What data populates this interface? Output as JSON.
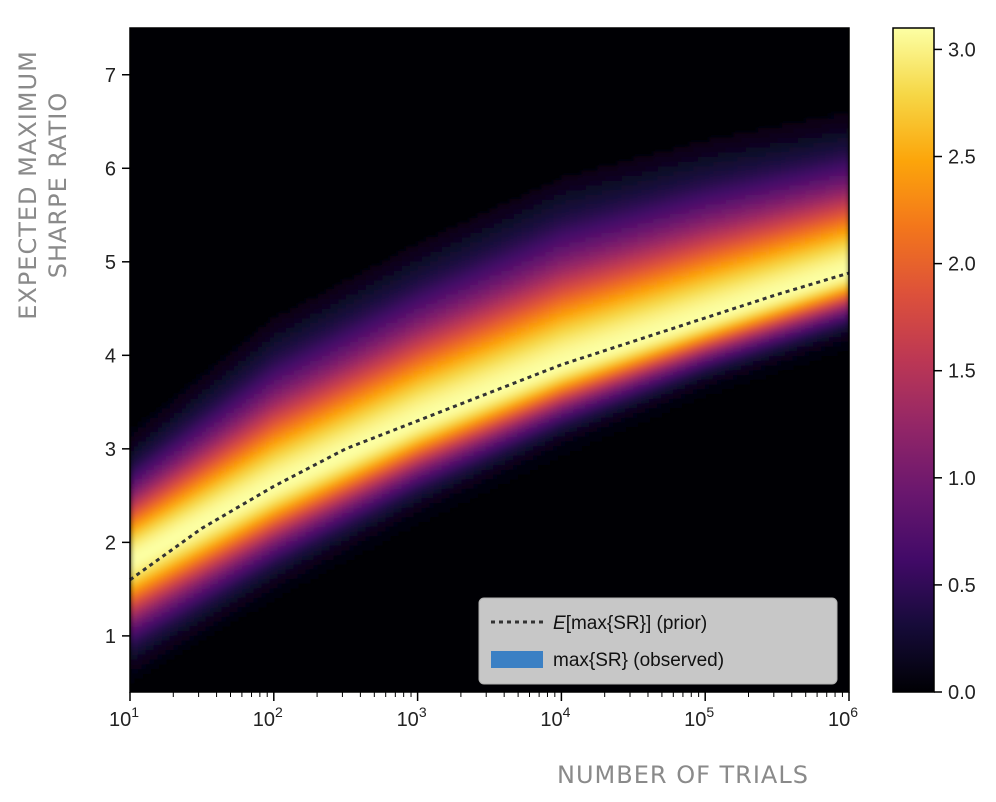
{
  "chart_data": {
    "type": "heatmap",
    "title": "",
    "xlabel": "NUMBER OF TRIALS",
    "ylabel_lines": [
      "EXPECTED MAXIMUM",
      "SHARPE RATIO"
    ],
    "x_scale": "log",
    "xlim": [
      10,
      1000000
    ],
    "ylim": [
      0.4,
      7.5
    ],
    "x_ticks": [
      {
        "value": 10,
        "base": "10",
        "exp": "1"
      },
      {
        "value": 100,
        "base": "10",
        "exp": "2"
      },
      {
        "value": 1000,
        "base": "10",
        "exp": "3"
      },
      {
        "value": 10000,
        "base": "10",
        "exp": "4"
      },
      {
        "value": 100000,
        "base": "10",
        "exp": "5"
      },
      {
        "value": 1000000,
        "base": "10",
        "exp": "6"
      }
    ],
    "y_ticks": [
      1,
      2,
      3,
      4,
      5,
      6,
      7
    ],
    "grid": false,
    "background_color": "#000004",
    "colormap": "inferno",
    "colorbar": {
      "range": [
        0.0,
        3.1
      ],
      "ticks": [
        "0.0",
        "0.5",
        "1.0",
        "1.5",
        "2.0",
        "2.5",
        "3.0"
      ],
      "tick_values": [
        0.0,
        0.5,
        1.0,
        1.5,
        2.0,
        2.5,
        3.0
      ]
    },
    "band": {
      "x": [
        10,
        100,
        1000,
        10000,
        100000,
        1000000
      ],
      "center": [
        1.8,
        2.6,
        3.3,
        3.9,
        4.4,
        4.9
      ],
      "lower_edge": [
        0.8,
        1.7,
        2.5,
        3.2,
        3.8,
        4.3
      ],
      "upper_edge": [
        2.9,
        4.1,
        4.9,
        5.6,
        6.0,
        6.3
      ],
      "peak_density": 3.1
    },
    "series": [
      {
        "name": "E[max{SR}] (prior)",
        "style": "dotted",
        "color": "#333333",
        "x": [
          10,
          31.6,
          100,
          316,
          1000,
          3162,
          10000,
          31623,
          100000,
          316228,
          1000000
        ],
        "y": [
          1.6,
          2.15,
          2.6,
          3.0,
          3.3,
          3.6,
          3.9,
          4.15,
          4.4,
          4.65,
          4.88
        ]
      }
    ],
    "legend": {
      "position": "bottom-right",
      "entries": [
        {
          "label_italic": "E",
          "label": "[max{SR}] (prior)",
          "style": "dotted",
          "color": "#333333"
        },
        {
          "label": "max{SR} (observed)",
          "style": "patch",
          "color": "#3b80c4"
        }
      ]
    }
  }
}
